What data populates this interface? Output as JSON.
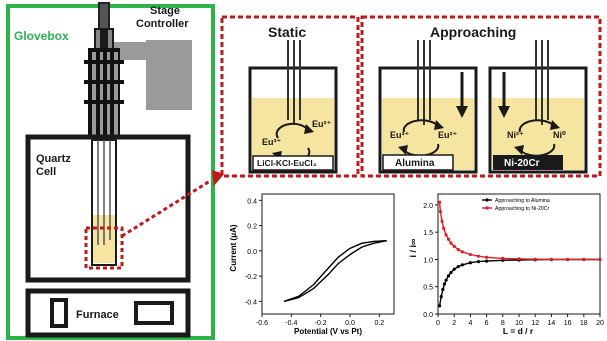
{
  "setup": {
    "glovebox": "Glovebox",
    "stage_controller_line1": "Stage",
    "stage_controller_line2": "Controller",
    "quartz_line1": "Quartz",
    "quartz_line2": "Cell",
    "furnace": "Furnace"
  },
  "panels": {
    "static": {
      "title": "Static",
      "ion_left": "Eu³⁺",
      "ion_right": "Eu²⁺",
      "label": "LiCl-KCl-EuCl₃"
    },
    "approaching": {
      "title": "Approaching",
      "alumina": {
        "ion_left": "Eu³⁺",
        "ion_right": "Eu²⁺",
        "label": "Alumina"
      },
      "nicr": {
        "ion_left": "Ni²⁺",
        "ion_right": "Ni⁰",
        "label": "Ni-20Cr"
      }
    }
  },
  "colors": {
    "green": "#2db34a",
    "red": "#c0191b",
    "salt": "#f6e4a1",
    "gray": "#9a9a9a",
    "black_curve": "#000000",
    "red_curve": "#e01f26"
  },
  "chart_data": [
    {
      "type": "line",
      "xlabel": "Potential (V vs Pt)",
      "ylabel": "Current (μA)",
      "xlim": [
        -0.6,
        0.3
      ],
      "ylim": [
        -0.5,
        0.45
      ],
      "xticks": [
        "-0.6",
        "-0.4",
        "-0.2",
        "0.0",
        "0.2"
      ],
      "yticks": [
        "-0.4",
        "-0.2",
        "0.0",
        "0.2",
        "0.4"
      ],
      "series": [
        {
          "x": [
            -0.45,
            -0.35,
            -0.25,
            -0.15,
            -0.08,
            0.0,
            0.08,
            0.16,
            0.25
          ],
          "y": [
            -0.4,
            -0.36,
            -0.27,
            -0.14,
            -0.05,
            0.02,
            0.06,
            0.075,
            0.08
          ]
        },
        {
          "x": [
            0.25,
            0.16,
            0.08,
            0.0,
            -0.08,
            -0.15,
            -0.25,
            -0.35,
            -0.45
          ],
          "y": [
            0.08,
            0.06,
            0.03,
            -0.03,
            -0.1,
            -0.19,
            -0.3,
            -0.37,
            -0.4
          ]
        }
      ]
    },
    {
      "type": "line",
      "xlabel": "L = d / r",
      "ylabel": "i / i∞",
      "xlim": [
        0,
        20
      ],
      "ylim": [
        0.0,
        2.2
      ],
      "xticks": [
        "0",
        "2",
        "4",
        "6",
        "8",
        "10",
        "12",
        "14",
        "16",
        "18",
        "20"
      ],
      "yticks": [
        "0.0",
        "0.5",
        "1.0",
        "1.5",
        "2.0"
      ],
      "legend_position": "top-right",
      "series": [
        {
          "name": "Approaching to Alumina",
          "x": [
            0.2,
            0.4,
            0.6,
            0.8,
            1.0,
            1.3,
            1.6,
            2.0,
            2.5,
            3.0,
            4.0,
            5.0,
            6.0,
            8.0,
            10.0,
            12.0,
            14.0,
            16.0,
            18.0,
            20.0
          ],
          "y": [
            0.15,
            0.32,
            0.45,
            0.55,
            0.62,
            0.7,
            0.76,
            0.82,
            0.87,
            0.9,
            0.94,
            0.96,
            0.97,
            0.985,
            0.99,
            0.995,
            0.997,
            0.998,
            0.999,
            1.0
          ]
        },
        {
          "name": "Approaching to Ni-20Cr",
          "x": [
            0.2,
            0.3,
            0.5,
            0.7,
            1.0,
            1.3,
            1.6,
            2.0,
            2.5,
            3.0,
            4.0,
            5.0,
            6.0,
            8.0,
            10.0,
            12.0,
            14.0,
            16.0,
            18.0,
            20.0
          ],
          "y": [
            2.05,
            1.88,
            1.7,
            1.57,
            1.45,
            1.37,
            1.3,
            1.24,
            1.18,
            1.14,
            1.09,
            1.06,
            1.04,
            1.02,
            1.01,
            1.005,
            1.003,
            1.002,
            1.001,
            1.0
          ]
        }
      ]
    }
  ]
}
